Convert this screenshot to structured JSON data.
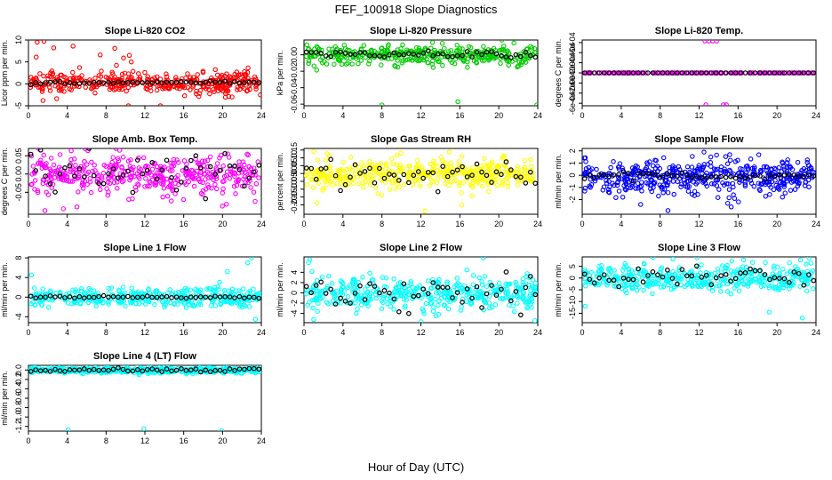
{
  "figure": {
    "title": "FEF_100918  Slope Diagnostics",
    "xlabel": "Hour of Day (UTC)"
  },
  "chart_data": [
    {
      "type": "scatter",
      "title": "Slope Li-820 CO2",
      "ylabel": "Licor ppm per min.",
      "xlim": [
        0,
        24
      ],
      "ylim": [
        -5,
        10
      ],
      "xticks": [
        0,
        4,
        8,
        12,
        16,
        20,
        24
      ],
      "yticks": [
        -5,
        0,
        5,
        10
      ],
      "ytick_labels": [
        "-5",
        "0",
        "5",
        "10"
      ],
      "color": "#ff0000",
      "center": 0.3,
      "spread": 1.3,
      "n_points": 380,
      "n_hourly": 48,
      "hourly_spread": 0.2,
      "outliers": [
        {
          "x": 0.9,
          "y": 9.5
        },
        {
          "x": 1.6,
          "y": 9.7
        },
        {
          "x": 2.6,
          "y": 8.2
        },
        {
          "x": 4.6,
          "y": 8.6
        },
        {
          "x": 7.4,
          "y": 6.6
        },
        {
          "x": 8.9,
          "y": 8.1
        },
        {
          "x": 9.8,
          "y": 5.9
        },
        {
          "x": 10.4,
          "y": 6.5
        },
        {
          "x": 10.6,
          "y": 5.0
        },
        {
          "x": 0.8,
          "y": 6.1
        },
        {
          "x": 10.3,
          "y": -5.0
        },
        {
          "x": 13.6,
          "y": -5.0
        },
        {
          "x": 1.5,
          "y": -3.8
        },
        {
          "x": 23.9,
          "y": -2.5
        }
      ]
    },
    {
      "type": "scatter",
      "title": "Slope Li-820 Pressure",
      "ylabel": "kPa per min.",
      "xlim": [
        0,
        24
      ],
      "ylim": [
        -0.062,
        0.018
      ],
      "xticks": [
        0,
        4,
        8,
        12,
        16,
        20,
        24
      ],
      "yticks": [
        -0.06,
        -0.04,
        -0.02,
        0
      ],
      "ytick_labels": [
        "-0.06",
        "-0.04",
        "-0.02",
        "0.00"
      ],
      "color": "#00cc00",
      "center": 0.0,
      "spread": 0.006,
      "n_points": 380,
      "n_hourly": 48,
      "hourly_spread": 0.0025,
      "outliers": [
        {
          "x": 8.0,
          "y": -0.061
        },
        {
          "x": 15.8,
          "y": -0.057
        },
        {
          "x": 23.9,
          "y": -0.061
        },
        {
          "x": 13.2,
          "y": 0.015
        }
      ]
    },
    {
      "type": "scatter",
      "title": "Slope Li-820 Temp.",
      "ylabel": "degrees C per min.",
      "xlim": [
        0,
        24
      ],
      "ylim": [
        -0.00065,
        0.00065
      ],
      "xticks": [
        0,
        4,
        8,
        12,
        16,
        20,
        24
      ],
      "yticks": [
        -0.0006,
        -0.0004,
        -0.0002,
        0,
        0.0002,
        0.0004,
        0.0006
      ],
      "ytick_labels": [
        "-6e-04",
        "-4e-04",
        "-2e-04",
        "0e+00",
        "2e-04",
        "4e-04",
        "6e-04"
      ],
      "color": "#ff00ff",
      "center": 0.0,
      "spread": 0.0,
      "n_points": 190,
      "n_hourly": 48,
      "hourly_spread": 0.0,
      "outliers": [
        {
          "x": 12.6,
          "y": 0.00063
        },
        {
          "x": 13.0,
          "y": 0.00063
        },
        {
          "x": 13.4,
          "y": 0.00063
        },
        {
          "x": 13.8,
          "y": 0.00063
        },
        {
          "x": 12.7,
          "y": -0.00063
        },
        {
          "x": 14.5,
          "y": -0.00063
        },
        {
          "x": 14.8,
          "y": -0.00063
        },
        {
          "x": 5.2,
          "y": 0.0
        }
      ]
    },
    {
      "type": "scatter",
      "title": "Slope Amb. Box Temp.",
      "ylabel": "degrees C per min.",
      "xlim": [
        0,
        24
      ],
      "ylim": [
        -0.11,
        0.07
      ],
      "xticks": [
        0,
        4,
        8,
        12,
        16,
        20,
        24
      ],
      "yticks": [
        -0.05,
        0,
        0.05
      ],
      "ytick_labels": [
        "-0.05",
        "0.00",
        "0.05"
      ],
      "color": "#ff00ff",
      "center": 0.0,
      "spread": 0.028,
      "n_points": 420,
      "n_hourly": 48,
      "hourly_spread": 0.03,
      "outliers": [
        {
          "x": 3.6,
          "y": -0.095
        },
        {
          "x": 5.0,
          "y": -0.09
        },
        {
          "x": 9.4,
          "y": 0.065
        },
        {
          "x": 1.7,
          "y": -0.1
        }
      ]
    },
    {
      "type": "scatter",
      "title": "Slope Gas Stream RH",
      "ylabel": "percent per min.",
      "xlim": [
        0,
        24
      ],
      "ylim": [
        -0.26,
        0.16
      ],
      "xticks": [
        0,
        4,
        8,
        12,
        16,
        20,
        24
      ],
      "yticks": [
        -0.2,
        -0.15,
        -0.1,
        -0.05,
        0,
        0.05,
        0.1,
        0.15
      ],
      "ytick_labels": [
        "-0.20",
        "-0.15",
        "-0.10",
        "-0.05",
        "0.00",
        "0.05",
        "0.10",
        "0.15"
      ],
      "color": "#ffff00",
      "center": 0.0,
      "spread": 0.05,
      "n_points": 420,
      "n_hourly": 48,
      "hourly_spread": 0.04,
      "outliers": [
        {
          "x": 12.4,
          "y": -0.24
        },
        {
          "x": 1.0,
          "y": 0.14
        },
        {
          "x": 16.2,
          "y": -0.2
        }
      ]
    },
    {
      "type": "scatter",
      "title": "Slope Sample Flow",
      "ylabel": "ml/min per min.",
      "xlim": [
        0,
        24
      ],
      "ylim": [
        -3.2,
        2.2
      ],
      "xticks": [
        0,
        4,
        8,
        12,
        16,
        20,
        24
      ],
      "yticks": [
        -2,
        -1,
        0,
        1,
        2
      ],
      "ytick_labels": [
        "-2",
        "-1",
        "0",
        "1",
        "2"
      ],
      "color": "#0000ff",
      "center": -0.1,
      "spread": 0.7,
      "n_points": 480,
      "n_hourly": 48,
      "hourly_spread": 0.15,
      "outliers": [
        {
          "x": 8.8,
          "y": -2.9
        },
        {
          "x": 12.5,
          "y": 1.9
        },
        {
          "x": 15.3,
          "y": -2.6
        },
        {
          "x": 13.2,
          "y": 1.5
        },
        {
          "x": 6.0,
          "y": -2.4
        }
      ]
    },
    {
      "type": "scatter",
      "title": "Slope Line 1 Flow",
      "ylabel": "ml/min per min.",
      "xlim": [
        0,
        24
      ],
      "ylim": [
        -5.2,
        8.2
      ],
      "xticks": [
        0,
        4,
        8,
        12,
        16,
        20,
        24
      ],
      "yticks": [
        -4,
        0,
        4,
        8
      ],
      "ytick_labels": [
        "-4",
        "0",
        "4",
        "8"
      ],
      "color": "#00ffff",
      "center": 0.0,
      "spread": 1.0,
      "n_points": 380,
      "n_hourly": 48,
      "hourly_spread": 0.1,
      "outliers": [
        {
          "x": 23.0,
          "y": 8.0
        },
        {
          "x": 22.6,
          "y": 7.0
        },
        {
          "x": 0.3,
          "y": 4.5
        },
        {
          "x": 23.4,
          "y": -4.5
        },
        {
          "x": 20.5,
          "y": 5.2
        }
      ]
    },
    {
      "type": "scatter",
      "title": "Slope Line 2 Flow",
      "ylabel": "ml/min per min.",
      "xlim": [
        0,
        24
      ],
      "ylim": [
        -5.8,
        7.0
      ],
      "xticks": [
        0,
        4,
        8,
        12,
        16,
        20,
        24
      ],
      "yticks": [
        -4,
        -2,
        0,
        2,
        4
      ],
      "ytick_labels": [
        "-4",
        "-2",
        "0",
        "2",
        "4"
      ],
      "color": "#00ffff",
      "center": 0.0,
      "spread": 1.6,
      "n_points": 420,
      "n_hourly": 48,
      "hourly_spread": 2.0,
      "outliers": [
        {
          "x": 0.6,
          "y": 6.5
        },
        {
          "x": 18.4,
          "y": 6.8
        },
        {
          "x": 12.0,
          "y": -5.6
        },
        {
          "x": 1.0,
          "y": -5.2
        },
        {
          "x": 23.7,
          "y": -5.4
        }
      ]
    },
    {
      "type": "scatter",
      "title": "Slope Line 3 Flow",
      "ylabel": "ml/min per min.",
      "xlim": [
        0,
        24
      ],
      "ylim": [
        -19,
        9
      ],
      "xticks": [
        0,
        4,
        8,
        12,
        16,
        20,
        24
      ],
      "yticks": [
        -15,
        -10,
        -5,
        0,
        5
      ],
      "ytick_labels": [
        "-15",
        "-10",
        "-5",
        "0",
        "5"
      ],
      "color": "#00ffff",
      "center": 0.0,
      "spread": 2.8,
      "n_points": 420,
      "n_hourly": 48,
      "hourly_spread": 2.0,
      "outliers": [
        {
          "x": 23.3,
          "y": 8.5
        },
        {
          "x": 22.6,
          "y": -17.0
        },
        {
          "x": 0.3,
          "y": -12.0
        },
        {
          "x": 19.2,
          "y": -14.5
        },
        {
          "x": 18.8,
          "y": 6.5
        }
      ]
    },
    {
      "type": "scatter",
      "title": "Slope Line 4 (LT) Flow",
      "ylabel": "ml/min per min.",
      "xlim": [
        0,
        24
      ],
      "ylim": [
        -1.3,
        0.1
      ],
      "xticks": [
        0,
        4,
        8,
        12,
        16,
        20,
        24
      ],
      "yticks": [
        -1.2,
        -1.0,
        -0.8,
        -0.6,
        -0.4,
        -0.2,
        0
      ],
      "ytick_labels": [
        "-1.2",
        "-1.0",
        "-0.8",
        "-0.6",
        "-0.4",
        "-0.2",
        "0.0"
      ],
      "color": "#00ffff",
      "center": 0.0,
      "spread": 0.03,
      "n_points": 480,
      "n_hourly": 48,
      "hourly_spread": 0.02,
      "outliers": [
        {
          "x": 4.1,
          "y": -1.27
        },
        {
          "x": 11.9,
          "y": -1.25
        },
        {
          "x": 19.9,
          "y": -1.29
        }
      ]
    }
  ]
}
